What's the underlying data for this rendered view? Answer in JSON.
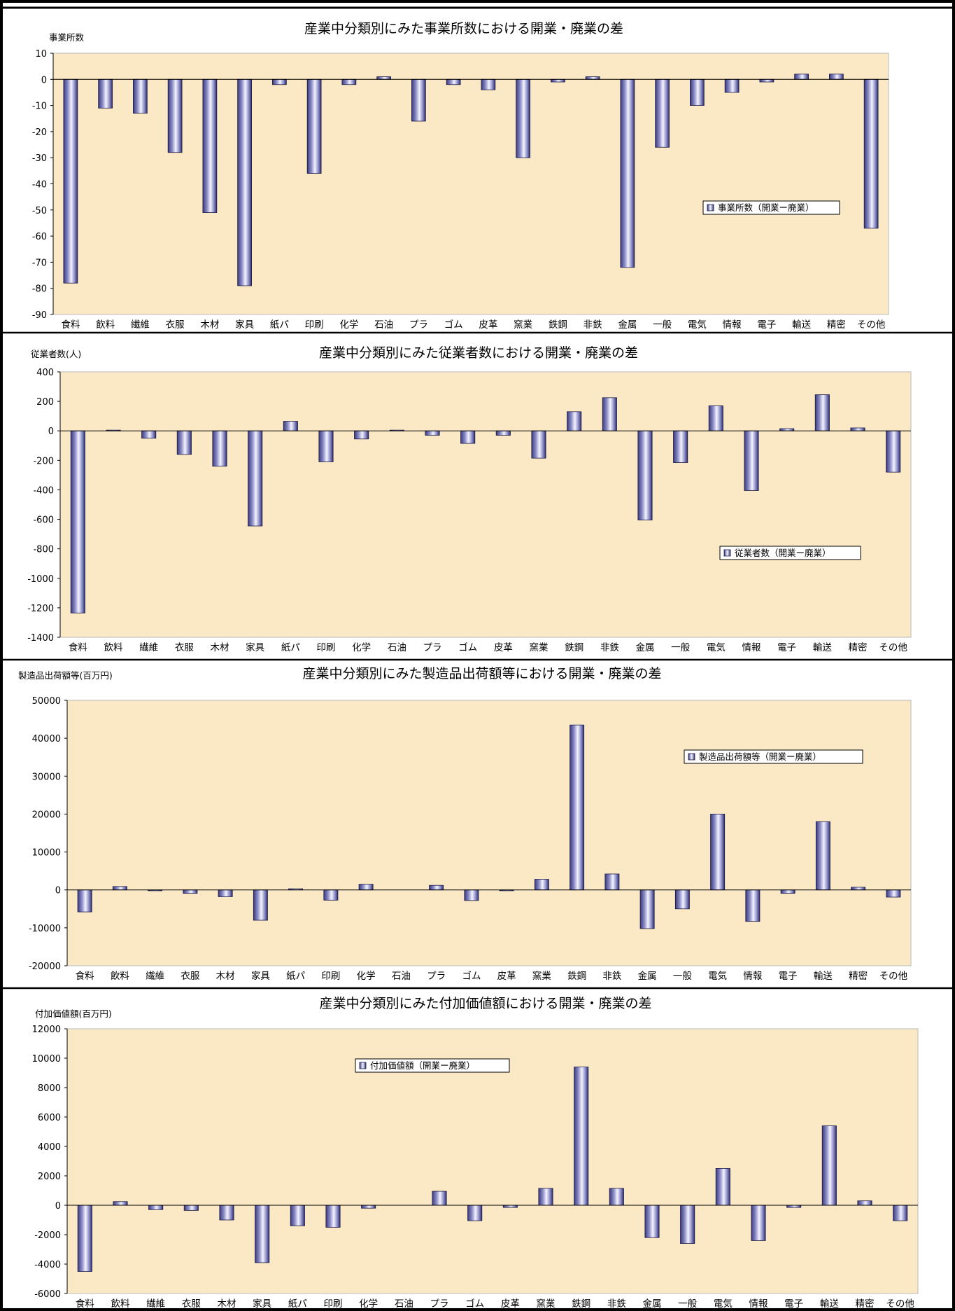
{
  "chart_data": [
    {
      "type": "bar",
      "title": "産業中分類別にみた事業所数における開業・廃業の差",
      "ylabel": "事業所数",
      "xlabel": "",
      "ylim": [
        -90,
        10
      ],
      "yticks": [
        10,
        0,
        -10,
        -20,
        -30,
        -40,
        -50,
        -60,
        -70,
        -80,
        -90
      ],
      "grid": false,
      "legend_position": "right",
      "categories": [
        "食料",
        "飲料",
        "繊維",
        "衣服",
        "木材",
        "家具",
        "紙パ",
        "印刷",
        "化学",
        "石油",
        "プラ",
        "ゴム",
        "皮革",
        "窯業",
        "鉄鋼",
        "非鉄",
        "金属",
        "一般",
        "電気",
        "情報",
        "電子",
        "輸送",
        "精密",
        "その他"
      ],
      "series": [
        {
          "name": "事業所数（開業ー廃業）",
          "values": [
            -78,
            -11,
            -13,
            -28,
            -51,
            -79,
            -2,
            -36,
            -2,
            1,
            -16,
            -2,
            -4,
            -30,
            -1,
            1,
            -72,
            -26,
            -10,
            -5,
            -1,
            2,
            2,
            -57
          ]
        }
      ]
    },
    {
      "type": "bar",
      "title": "産業中分類別にみた従業者数における開業・廃業の差",
      "ylabel": "従業者数(人)",
      "xlabel": "",
      "ylim": [
        -1400,
        400
      ],
      "yticks": [
        400,
        200,
        0,
        -200,
        -400,
        -600,
        -800,
        -1000,
        -1200,
        -1400
      ],
      "grid": false,
      "legend_position": "right",
      "categories": [
        "食料",
        "飲料",
        "繊維",
        "衣服",
        "木材",
        "家具",
        "紙パ",
        "印刷",
        "化学",
        "石油",
        "プラ",
        "ゴム",
        "皮革",
        "窯業",
        "鉄鋼",
        "非鉄",
        "金属",
        "一般",
        "電気",
        "情報",
        "電子",
        "輸送",
        "精密",
        "その他"
      ],
      "series": [
        {
          "name": "従業者数（開業ー廃業）",
          "values": [
            -1235,
            5,
            -50,
            -160,
            -240,
            -645,
            65,
            -210,
            -55,
            5,
            -30,
            -85,
            -30,
            -185,
            130,
            225,
            -605,
            -215,
            170,
            -405,
            15,
            245,
            20,
            -280
          ]
        }
      ]
    },
    {
      "type": "bar",
      "title": "産業中分類別にみた製造品出荷額等における開業・廃業の差",
      "ylabel": "製造品出荷額等(百万円)",
      "xlabel": "",
      "ylim": [
        -20000,
        50000
      ],
      "yticks": [
        50000,
        40000,
        30000,
        20000,
        10000,
        0,
        -10000,
        -20000
      ],
      "grid": false,
      "legend_position": "top-right",
      "categories": [
        "食料",
        "飲料",
        "繊維",
        "衣服",
        "木材",
        "家具",
        "紙パ",
        "印刷",
        "化学",
        "石油",
        "プラ",
        "ゴム",
        "皮革",
        "窯業",
        "鉄鋼",
        "非鉄",
        "金属",
        "一般",
        "電気",
        "情報",
        "電子",
        "輸送",
        "精密",
        "その他"
      ],
      "series": [
        {
          "name": "製造品出荷額等（開業ー廃業）",
          "values": [
            -5800,
            900,
            -200,
            -900,
            -1800,
            -8000,
            300,
            -2700,
            1500,
            0,
            1200,
            -2800,
            -200,
            2800,
            43500,
            4200,
            -10200,
            -5000,
            20000,
            -8300,
            -900,
            18000,
            700,
            -1900
          ]
        }
      ]
    },
    {
      "type": "bar",
      "title": "産業中分類別にみた付加価値額における開業・廃業の差",
      "ylabel": "付加価値額(百万円)",
      "xlabel": "",
      "ylim": [
        -6000,
        12000
      ],
      "yticks": [
        12000,
        10000,
        8000,
        6000,
        4000,
        2000,
        0,
        -2000,
        -4000,
        -6000
      ],
      "grid": false,
      "legend_position": "top-center",
      "categories": [
        "食料",
        "飲料",
        "繊維",
        "衣服",
        "木材",
        "家具",
        "紙パ",
        "印刷",
        "化学",
        "石油",
        "プラ",
        "ゴム",
        "皮革",
        "窯業",
        "鉄鋼",
        "非鉄",
        "金属",
        "一般",
        "電気",
        "情報",
        "電子",
        "輸送",
        "精密",
        "その他"
      ],
      "series": [
        {
          "name": "付加価値額（開業ー廃業）",
          "values": [
            -4500,
            250,
            -300,
            -350,
            -1000,
            -3900,
            -1400,
            -1500,
            -200,
            0,
            950,
            -1050,
            -150,
            1150,
            9400,
            1150,
            -2200,
            -2600,
            2500,
            -2400,
            -150,
            5400,
            300,
            -1050
          ]
        }
      ]
    }
  ]
}
